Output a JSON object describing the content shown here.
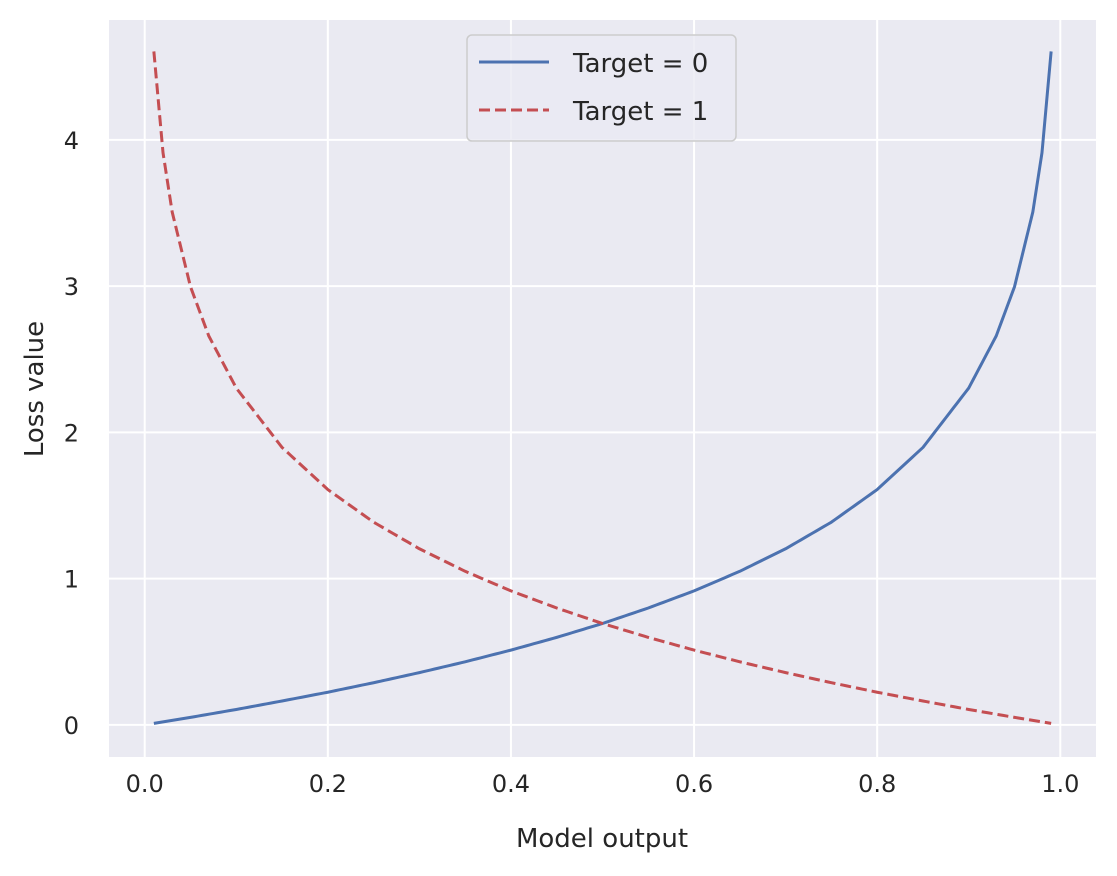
{
  "chart_data": {
    "type": "line",
    "title": "",
    "xlabel": "Model output",
    "ylabel": "Loss value",
    "xlim": [
      -0.039,
      1.039
    ],
    "ylim": [
      -0.22,
      4.82
    ],
    "xticks": [
      0.0,
      0.2,
      0.4,
      0.6,
      0.8,
      1.0
    ],
    "xtick_labels": [
      "0.0",
      "0.2",
      "0.4",
      "0.6",
      "0.8",
      "1.0"
    ],
    "yticks": [
      0,
      1,
      2,
      3,
      4
    ],
    "ytick_labels": [
      "0",
      "1",
      "2",
      "3",
      "4"
    ],
    "grid": true,
    "legend_position": "upper-center",
    "background_color": "#eaeaf2",
    "grid_color": "#ffffff",
    "series": [
      {
        "name": "Target = 0",
        "color": "#4c72b0",
        "style": "solid",
        "x": [
          0.01,
          0.05,
          0.1,
          0.15,
          0.2,
          0.25,
          0.3,
          0.35,
          0.4,
          0.45,
          0.5,
          0.55,
          0.6,
          0.65,
          0.7,
          0.75,
          0.8,
          0.85,
          0.9,
          0.93,
          0.95,
          0.97,
          0.98,
          0.99
        ],
        "y": [
          0.01,
          0.051,
          0.105,
          0.163,
          0.223,
          0.288,
          0.357,
          0.431,
          0.511,
          0.598,
          0.693,
          0.799,
          0.916,
          1.05,
          1.204,
          1.386,
          1.609,
          1.897,
          2.303,
          2.659,
          2.996,
          3.507,
          3.912,
          4.605
        ]
      },
      {
        "name": "Target = 1",
        "color": "#c44e52",
        "style": "dashed",
        "x": [
          0.01,
          0.02,
          0.03,
          0.05,
          0.07,
          0.1,
          0.15,
          0.2,
          0.25,
          0.3,
          0.35,
          0.4,
          0.45,
          0.5,
          0.55,
          0.6,
          0.65,
          0.7,
          0.75,
          0.8,
          0.85,
          0.9,
          0.95,
          0.99
        ],
        "y": [
          4.605,
          3.912,
          3.507,
          2.996,
          2.659,
          2.303,
          1.897,
          1.609,
          1.386,
          1.204,
          1.05,
          0.916,
          0.799,
          0.693,
          0.598,
          0.511,
          0.431,
          0.357,
          0.288,
          0.223,
          0.163,
          0.105,
          0.051,
          0.01
        ]
      }
    ]
  }
}
